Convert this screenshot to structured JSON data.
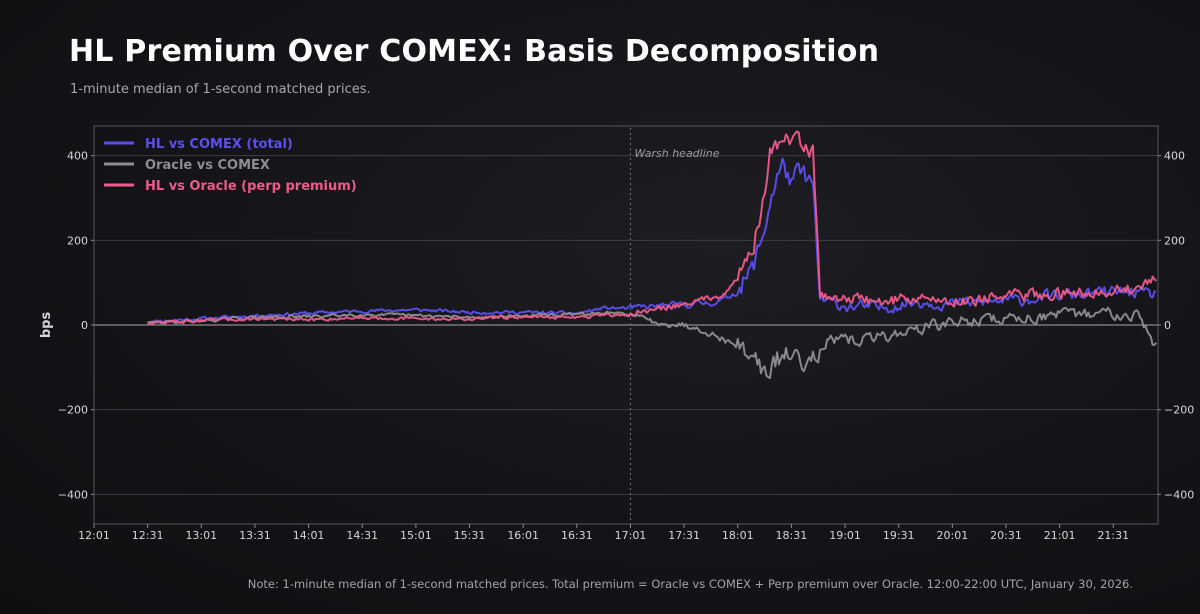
{
  "colors": {
    "total": "#5b4ff0",
    "oracle": "#8e8e92",
    "perp": "#ee5a8a",
    "grid": "#3c3c42",
    "axis": "#55555b"
  },
  "chart_data": {
    "type": "line",
    "title": "HL Premium Over COMEX: Basis Decomposition",
    "subtitle": "1-minute median of 1-second matched prices.",
    "note": "Note: 1-minute median of 1-second matched prices. Total premium = Oracle vs COMEX + Perp premium over Oracle. 12:00-22:00 UTC, January 30, 2026.",
    "xlabel": "",
    "ylabel": "bps",
    "x_ticks": [
      "12:01",
      "12:31",
      "13:01",
      "13:31",
      "14:01",
      "14:31",
      "15:01",
      "15:31",
      "16:01",
      "16:31",
      "17:01",
      "17:31",
      "18:01",
      "18:31",
      "19:01",
      "19:31",
      "20:01",
      "20:31",
      "21:01",
      "21:31"
    ],
    "y_ticks": [
      -400,
      -200,
      0,
      200,
      400
    ],
    "ylim": [
      -470,
      470
    ],
    "xlim_minutes": [
      0,
      595
    ],
    "grid": true,
    "legend_position": "top-left",
    "annotation": {
      "label": "Warsh headline",
      "x_minute": 300
    },
    "series_keyframes_note": "x in minutes after 12:01, y in bps",
    "series": [
      {
        "name": "HL vs COMEX (total)",
        "key": "total",
        "points": [
          [
            30,
            8
          ],
          [
            60,
            15
          ],
          [
            90,
            22
          ],
          [
            120,
            28
          ],
          [
            150,
            33
          ],
          [
            180,
            36
          ],
          [
            210,
            30
          ],
          [
            240,
            30
          ],
          [
            270,
            27
          ],
          [
            285,
            40
          ],
          [
            300,
            40
          ],
          [
            330,
            48
          ],
          [
            350,
            55
          ],
          [
            360,
            80
          ],
          [
            368,
            130
          ],
          [
            374,
            210
          ],
          [
            378,
            290
          ],
          [
            382,
            350
          ],
          [
            386,
            380
          ],
          [
            390,
            330
          ],
          [
            394,
            360
          ],
          [
            398,
            350
          ],
          [
            402,
            330
          ],
          [
            404,
            190
          ],
          [
            406,
            60
          ],
          [
            420,
            45
          ],
          [
            440,
            40
          ],
          [
            460,
            55
          ],
          [
            480,
            50
          ],
          [
            500,
            55
          ],
          [
            520,
            60
          ],
          [
            540,
            70
          ],
          [
            560,
            75
          ],
          [
            580,
            80
          ],
          [
            590,
            70
          ],
          [
            594,
            75
          ]
        ]
      },
      {
        "name": "Oracle vs COMEX",
        "key": "oracle",
        "points": [
          [
            30,
            5
          ],
          [
            60,
            10
          ],
          [
            90,
            18
          ],
          [
            120,
            20
          ],
          [
            150,
            25
          ],
          [
            180,
            22
          ],
          [
            210,
            18
          ],
          [
            240,
            22
          ],
          [
            270,
            25
          ],
          [
            285,
            28
          ],
          [
            300,
            25
          ],
          [
            310,
            10
          ],
          [
            320,
            5
          ],
          [
            330,
            0
          ],
          [
            340,
            -10
          ],
          [
            350,
            -30
          ],
          [
            360,
            -50
          ],
          [
            368,
            -70
          ],
          [
            372,
            -90
          ],
          [
            378,
            -130
          ],
          [
            382,
            -80
          ],
          [
            390,
            -70
          ],
          [
            398,
            -80
          ],
          [
            404,
            -60
          ],
          [
            410,
            -40
          ],
          [
            430,
            -35
          ],
          [
            450,
            -20
          ],
          [
            470,
            0
          ],
          [
            490,
            10
          ],
          [
            510,
            15
          ],
          [
            530,
            20
          ],
          [
            550,
            25
          ],
          [
            570,
            30
          ],
          [
            585,
            25
          ],
          [
            590,
            -30
          ],
          [
            594,
            -52
          ]
        ]
      },
      {
        "name": "HL vs Oracle (perp premium)",
        "key": "perp",
        "points": [
          [
            30,
            5
          ],
          [
            60,
            10
          ],
          [
            90,
            15
          ],
          [
            120,
            12
          ],
          [
            150,
            18
          ],
          [
            180,
            15
          ],
          [
            210,
            14
          ],
          [
            240,
            20
          ],
          [
            270,
            18
          ],
          [
            285,
            22
          ],
          [
            300,
            25
          ],
          [
            330,
            50
          ],
          [
            350,
            70
          ],
          [
            360,
            110
          ],
          [
            368,
            180
          ],
          [
            374,
            280
          ],
          [
            378,
            400
          ],
          [
            382,
            430
          ],
          [
            386,
            440
          ],
          [
            390,
            420
          ],
          [
            394,
            460
          ],
          [
            398,
            420
          ],
          [
            402,
            400
          ],
          [
            404,
            250
          ],
          [
            406,
            70
          ],
          [
            420,
            65
          ],
          [
            440,
            55
          ],
          [
            460,
            65
          ],
          [
            480,
            55
          ],
          [
            500,
            65
          ],
          [
            520,
            70
          ],
          [
            540,
            75
          ],
          [
            560,
            80
          ],
          [
            580,
            85
          ],
          [
            590,
            100
          ],
          [
            594,
            110
          ]
        ]
      }
    ]
  }
}
